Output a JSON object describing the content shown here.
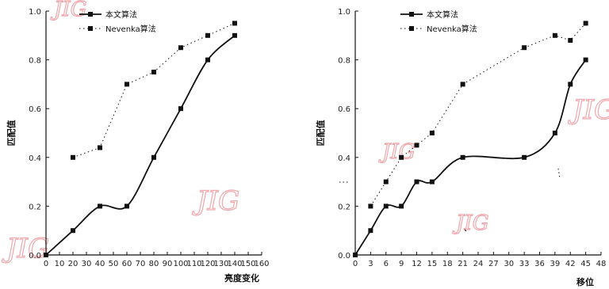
{
  "watermark": "JIG",
  "chart_data": [
    {
      "type": "line",
      "xlabel": "亮度变化",
      "ylabel": "匹配值",
      "xlim": [
        0,
        160
      ],
      "ylim": [
        0,
        1.0
      ],
      "xticks": [
        0,
        10,
        20,
        30,
        40,
        50,
        60,
        70,
        80,
        90,
        100,
        110,
        120,
        130,
        140,
        150,
        160
      ],
      "yticks": [
        0.0,
        0.2,
        0.4,
        0.6,
        0.8,
        1.0
      ],
      "ytick_labels": [
        "0.0",
        "0.2",
        "0.4",
        "0.6",
        "0.8",
        "1.0"
      ],
      "legend_position": "top-left",
      "series": [
        {
          "name": "本文算法",
          "style": "solid",
          "color": "#111111",
          "x": [
            0,
            20,
            40,
            60,
            80,
            100,
            120,
            140
          ],
          "y": [
            0.0,
            0.1,
            0.2,
            0.2,
            0.4,
            0.6,
            0.8,
            0.9
          ]
        },
        {
          "name": "Nevenka算法",
          "style": "dotted",
          "color": "#111111",
          "x": [
            20,
            40,
            60,
            80,
            100,
            120,
            140
          ],
          "y": [
            0.4,
            0.44,
            0.7,
            0.75,
            0.85,
            0.9,
            0.95
          ]
        }
      ]
    },
    {
      "type": "line",
      "xlabel": "移位",
      "ylabel": "匹配值",
      "xlim": [
        0,
        48
      ],
      "ylim": [
        0,
        1.0
      ],
      "xticks": [
        0,
        3,
        6,
        9,
        12,
        15,
        18,
        21,
        24,
        27,
        30,
        33,
        36,
        39,
        42,
        45,
        48
      ],
      "yticks": [
        0.0,
        0.2,
        0.4,
        0.6,
        0.8,
        1.0
      ],
      "ytick_labels": [
        "0.0",
        "0.2",
        "0.4",
        "0.6",
        "0.8",
        "1.0"
      ],
      "legend_position": "top-left",
      "series": [
        {
          "name": "本文算法",
          "style": "solid",
          "color": "#111111",
          "x": [
            0,
            3,
            6,
            9,
            12,
            15,
            21,
            33,
            39,
            42,
            45
          ],
          "y": [
            0.0,
            0.1,
            0.2,
            0.2,
            0.3,
            0.3,
            0.4,
            0.4,
            0.5,
            0.7,
            0.8
          ]
        },
        {
          "name": "Nevenka算法",
          "style": "dotted",
          "color": "#111111",
          "x": [
            3,
            6,
            9,
            12,
            15,
            21,
            33,
            39,
            42,
            45
          ],
          "y": [
            0.2,
            0.3,
            0.4,
            0.45,
            0.5,
            0.7,
            0.85,
            0.9,
            0.88,
            0.95
          ]
        }
      ]
    }
  ]
}
